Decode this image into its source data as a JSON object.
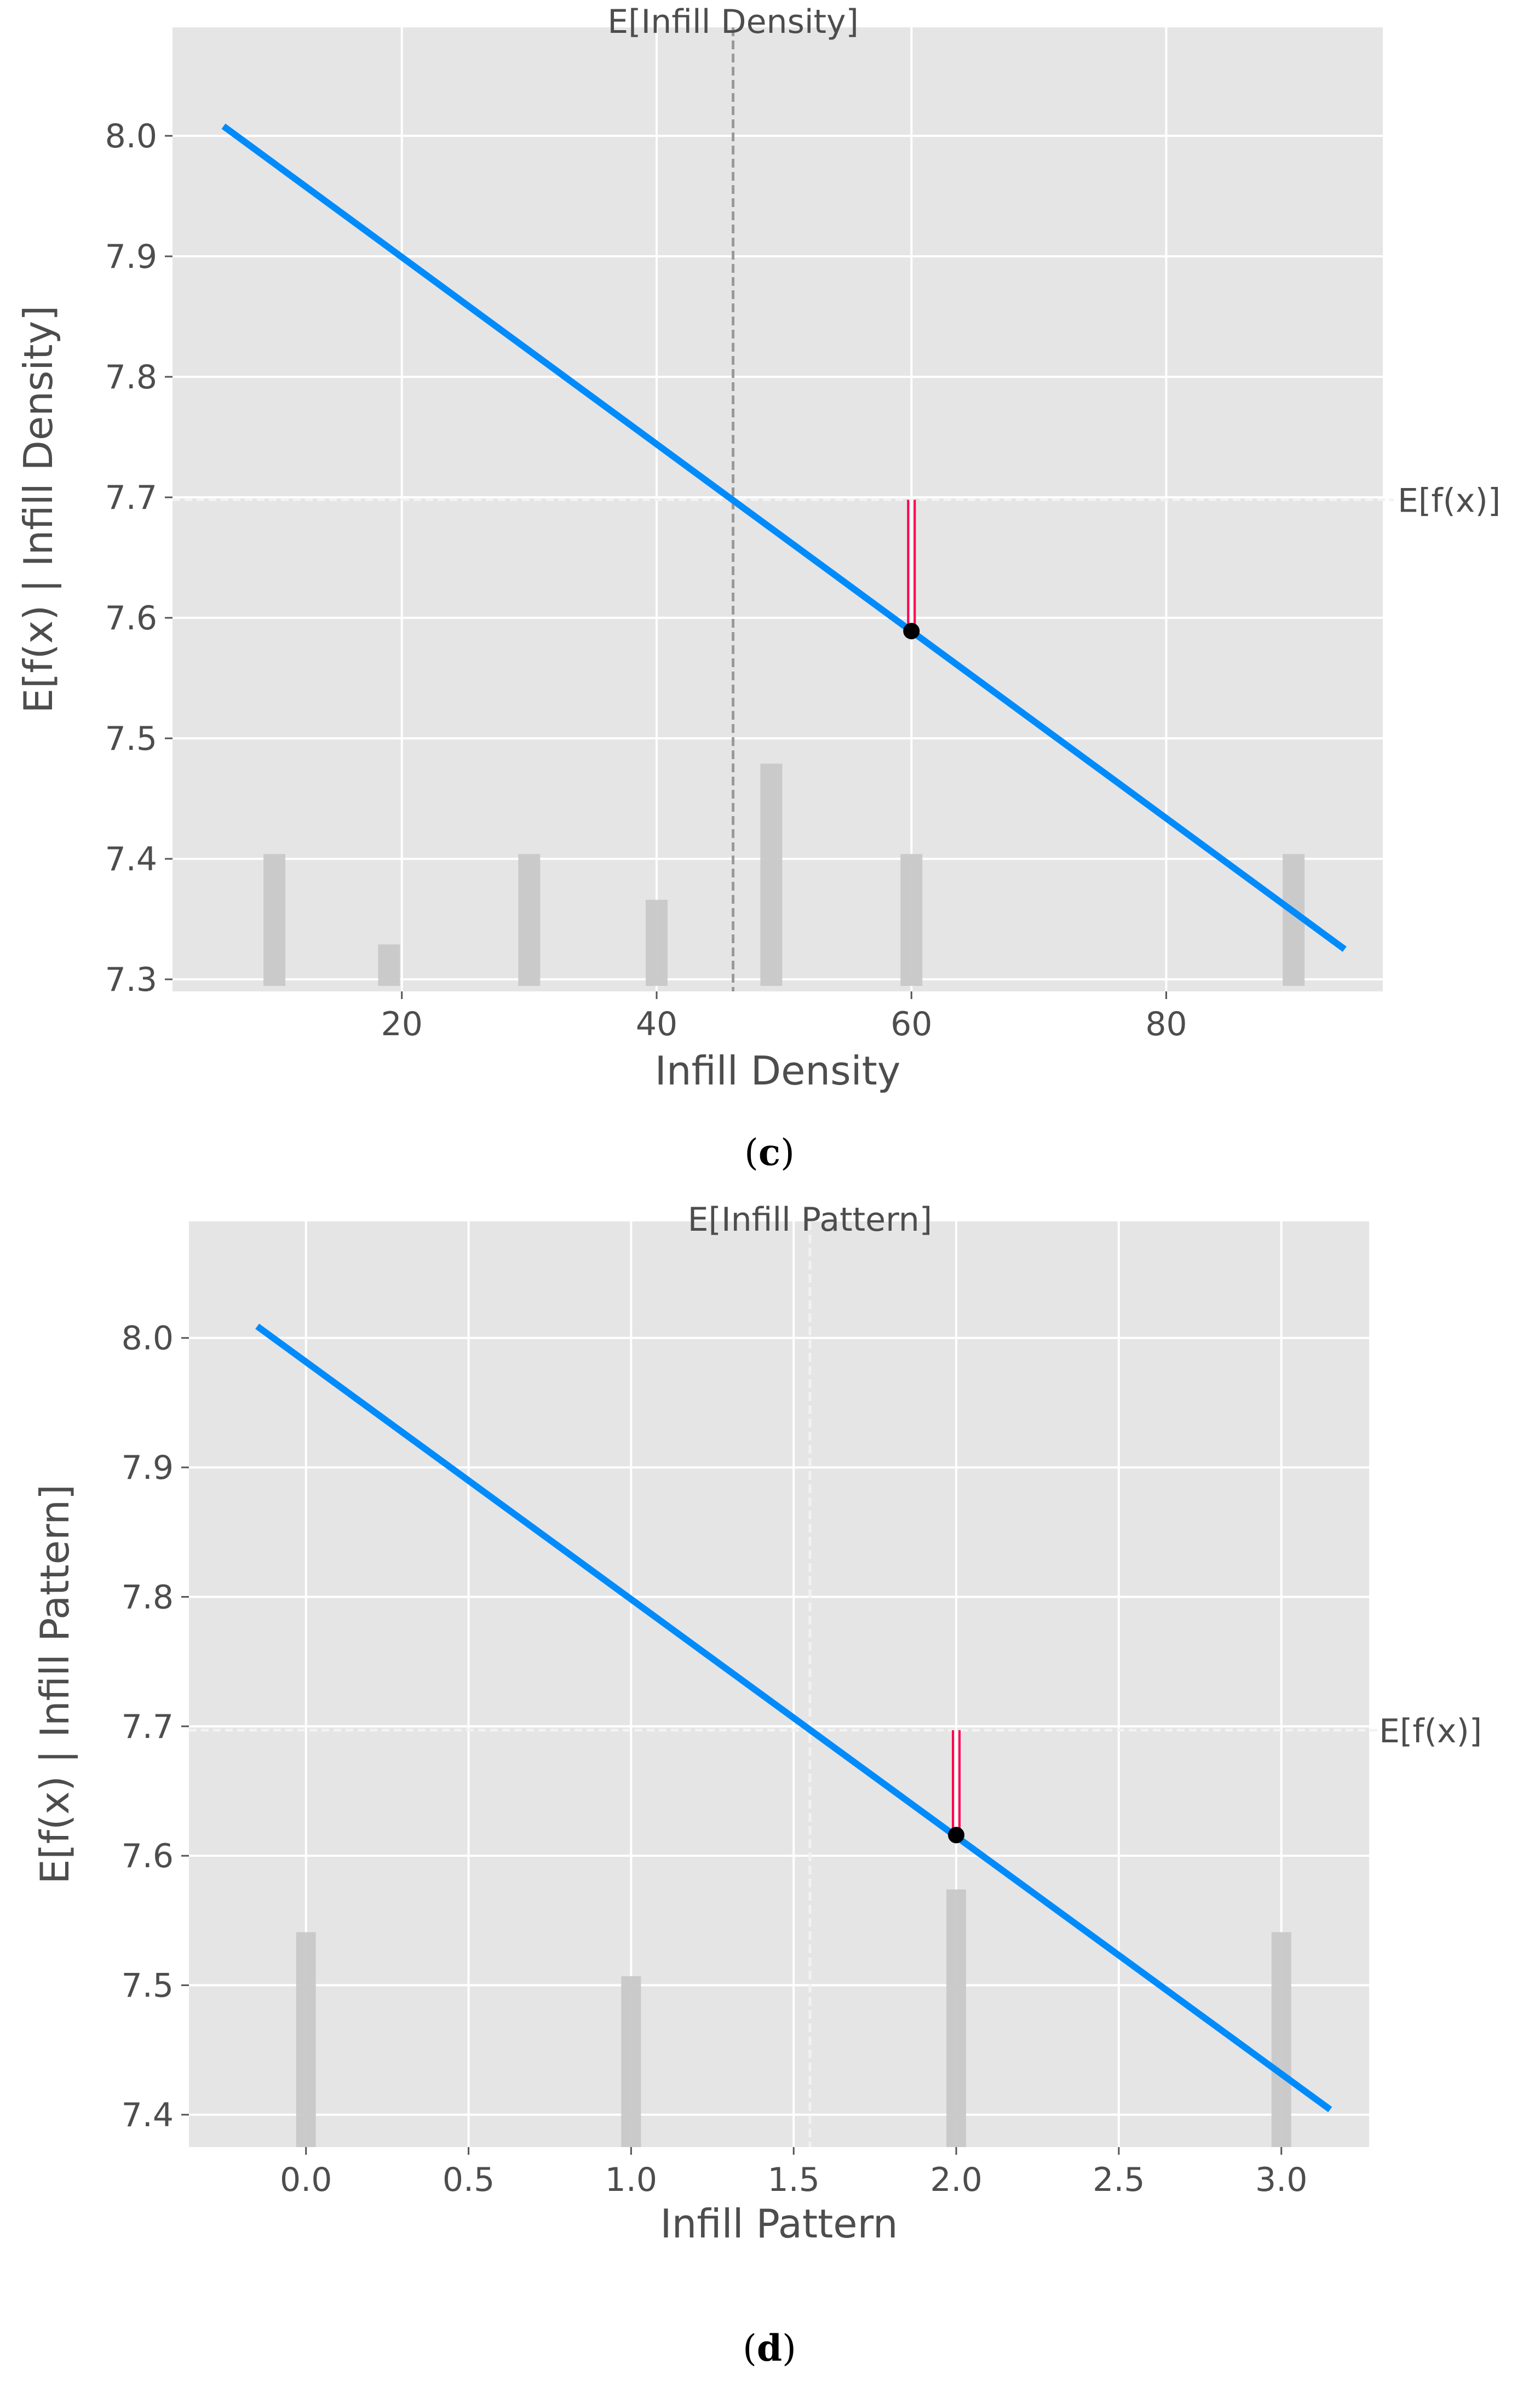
{
  "chart_data": [
    {
      "type": "line",
      "caption": {
        "open": "(",
        "letter": "c",
        "close": ")"
      },
      "xlabel": "Infill Density",
      "ylabel": "E[f(x) | Infill Density]",
      "top_annotation": "E[Infill Density]",
      "side_annotation": "E[f(x)]",
      "xlim": [
        2,
        97
      ],
      "ylim": [
        7.29,
        8.09
      ],
      "xticks": [
        20,
        40,
        60,
        80
      ],
      "xtick_labels": [
        "20",
        "40",
        "60",
        "80"
      ],
      "yticks": [
        7.3,
        7.4,
        7.5,
        7.6,
        7.7,
        7.8,
        7.9,
        8.0
      ],
      "ytick_labels": [
        "7.3",
        "7.4",
        "7.5",
        "7.6",
        "7.7",
        "7.8",
        "7.9",
        "8.0"
      ],
      "grid": true,
      "line": {
        "x": [
          6,
          94
        ],
        "y": [
          8.008,
          7.325
        ]
      },
      "expected_x": 46,
      "expected_fx": 7.698,
      "point": {
        "x": 60,
        "y": 7.589
      },
      "histogram": {
        "x": [
          10,
          19,
          30,
          40,
          49,
          60,
          90
        ],
        "y": [
          7.404,
          7.329,
          7.404,
          7.366,
          7.479,
          7.404,
          7.404
        ]
      },
      "colors": {
        "line": "#008bfb",
        "contribution": "#ff0051",
        "point": "#000000",
        "histogram": "#c8c8c8",
        "background": "#e5e5e5",
        "grid": "#ffffff"
      }
    },
    {
      "type": "line",
      "caption": {
        "open": "(",
        "letter": "d",
        "close": ")"
      },
      "xlabel": "Infill Pattern",
      "ylabel": "E[f(x) | Infill Pattern]",
      "top_annotation": "E[Infill Pattern]",
      "side_annotation": "E[f(x)]",
      "xlim": [
        -0.36,
        3.27
      ],
      "ylim": [
        7.375,
        8.09
      ],
      "xticks": [
        0.0,
        0.5,
        1.0,
        1.5,
        2.0,
        2.5,
        3.0
      ],
      "xtick_labels": [
        "0.0",
        "0.5",
        "1.0",
        "1.5",
        "2.0",
        "2.5",
        "3.0"
      ],
      "yticks": [
        7.4,
        7.5,
        7.6,
        7.7,
        7.8,
        7.9,
        8.0
      ],
      "ytick_labels": [
        "7.4",
        "7.5",
        "7.6",
        "7.7",
        "7.8",
        "7.9",
        "8.0"
      ],
      "grid": true,
      "line": {
        "x": [
          -0.15,
          3.15
        ],
        "y": [
          8.009,
          7.404
        ]
      },
      "expected_x": 1.55,
      "expected_fx": 7.697,
      "point": {
        "x": 2.0,
        "y": 7.616
      },
      "histogram": {
        "x": [
          0.0,
          1.0,
          2.0,
          3.0
        ],
        "y": [
          7.541,
          7.507,
          7.574,
          7.541
        ]
      },
      "colors": {
        "line": "#008bfb",
        "contribution": "#ff0051",
        "point": "#000000",
        "histogram": "#c8c8c8",
        "background": "#e5e5e5",
        "grid": "#ffffff"
      }
    }
  ]
}
